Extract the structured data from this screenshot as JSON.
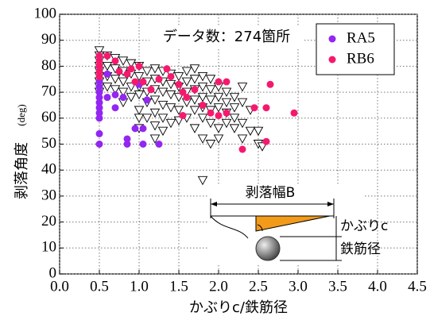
{
  "chart_data": {
    "type": "scatter",
    "annotation": "データ数：274箇所",
    "x_label": "かぶりc/鉄筋径",
    "y_label": "剥落角度",
    "y_label_unit": "(deg)",
    "inset_labels": [
      "剥落幅B",
      "かぶりc",
      "鉄筋径"
    ],
    "xlim": [
      0,
      4.5
    ],
    "ylim": [
      0,
      100
    ],
    "xticks": [
      {
        "value": 0,
        "label": "0.0"
      },
      0.5,
      {
        "value": 1,
        "label": "1.0"
      },
      1.5,
      {
        "value": 2,
        "label": "2.0"
      },
      2.5,
      {
        "value": 3,
        "label": "3.0"
      },
      3.5,
      {
        "value": 4,
        "label": "4.0"
      },
      4.5
    ],
    "yticks": [
      0,
      10,
      20,
      30,
      40,
      50,
      60,
      70,
      80,
      90,
      100
    ],
    "grid": true,
    "legend": "upper right",
    "series": [
      {
        "marker": "triangle",
        "color": "#ffffff",
        "x": [
          0.5,
          0.5,
          0.5,
          0.5,
          0.5,
          0.5,
          0.5,
          0.5,
          0.5,
          0.6,
          0.6,
          0.6,
          0.6,
          0.7,
          0.7,
          0.7,
          0.7,
          0.8,
          0.8,
          0.8,
          0.8,
          0.8,
          0.9,
          0.9,
          0.9,
          0.9,
          1.0,
          1.0,
          1.0,
          1.0,
          1.0,
          1.0,
          1.0,
          1.1,
          1.1,
          1.1,
          1.1,
          1.1,
          1.2,
          1.2,
          1.2,
          1.2,
          1.2,
          1.2,
          1.2,
          1.3,
          1.3,
          1.3,
          1.3,
          1.3,
          1.3,
          1.4,
          1.4,
          1.4,
          1.4,
          1.4,
          1.5,
          1.5,
          1.5,
          1.5,
          1.5,
          1.6,
          1.6,
          1.6,
          1.6,
          1.6,
          1.7,
          1.7,
          1.7,
          1.7,
          1.7,
          1.7,
          1.8,
          1.8,
          1.8,
          1.8,
          1.8,
          1.8,
          1.8,
          1.9,
          1.9,
          1.9,
          1.9,
          1.9,
          1.9,
          2.0,
          2.0,
          2.0,
          2.0,
          2.0,
          2.1,
          2.1,
          2.1,
          2.1,
          2.2,
          2.2,
          2.2,
          2.2,
          2.3,
          2.3,
          2.3,
          2.3,
          2.4,
          2.4,
          2.5,
          2.5,
          2.55
        ],
        "values": [
          86,
          84,
          82,
          80,
          78,
          76,
          74,
          72,
          70,
          84,
          80,
          76,
          72,
          83,
          79,
          75,
          71,
          82,
          78,
          74,
          70,
          66,
          81,
          77,
          72,
          68,
          80,
          76,
          72,
          69,
          63,
          60,
          56,
          78,
          74,
          70,
          66,
          60,
          79,
          75,
          71,
          67,
          62,
          57,
          52,
          78,
          74,
          70,
          65,
          60,
          55,
          77,
          73,
          69,
          64,
          58,
          76,
          72,
          68,
          63,
          59,
          78,
          74,
          70,
          66,
          60,
          79,
          75,
          71,
          67,
          63,
          56,
          76,
          72,
          68,
          64,
          60,
          52,
          36,
          75,
          71,
          67,
          63,
          58,
          50,
          72,
          68,
          64,
          56,
          52,
          70,
          66,
          62,
          58,
          68,
          64,
          60,
          56,
          72,
          66,
          58,
          52,
          63,
          55,
          55,
          50,
          49
        ]
      },
      {
        "name": "RA5",
        "marker": "circle",
        "color": "#9326f0",
        "x": [
          0.5,
          0.5,
          0.5,
          0.5,
          0.5,
          0.5,
          0.5,
          0.5,
          0.5,
          0.5,
          0.5,
          0.5,
          0.6,
          0.6,
          0.7,
          0.7,
          0.8,
          0.85,
          0.85,
          0.95,
          1.0,
          1.05,
          1.05,
          1.1,
          1.25
        ],
        "values": [
          50,
          54,
          60,
          62,
          64,
          66,
          68,
          70,
          72,
          74,
          78,
          80,
          77,
          68,
          64,
          69,
          68,
          52,
          50,
          56,
          73,
          56,
          50,
          67,
          50
        ]
      },
      {
        "name": "RB6",
        "marker": "circle",
        "color": "#f5196e",
        "x": [
          0.5,
          0.5,
          0.5,
          0.5,
          0.5,
          0.6,
          0.7,
          0.75,
          0.85,
          0.9,
          0.95,
          1.0,
          1.05,
          1.15,
          1.25,
          1.35,
          1.4,
          1.5,
          1.55,
          1.6,
          1.55,
          1.7,
          1.8,
          1.9,
          2.0,
          2.0,
          2.1,
          2.1,
          2.3,
          2.45,
          2.6,
          2.6,
          2.65,
          2.95
        ],
        "values": [
          84,
          82,
          80,
          78,
          76,
          84,
          82,
          78,
          77,
          79,
          74,
          80,
          74,
          71,
          75,
          79,
          76,
          73,
          70,
          68,
          61,
          71,
          65,
          62,
          74,
          61,
          74,
          62,
          48,
          64,
          64,
          51,
          73,
          62
        ]
      }
    ]
  }
}
